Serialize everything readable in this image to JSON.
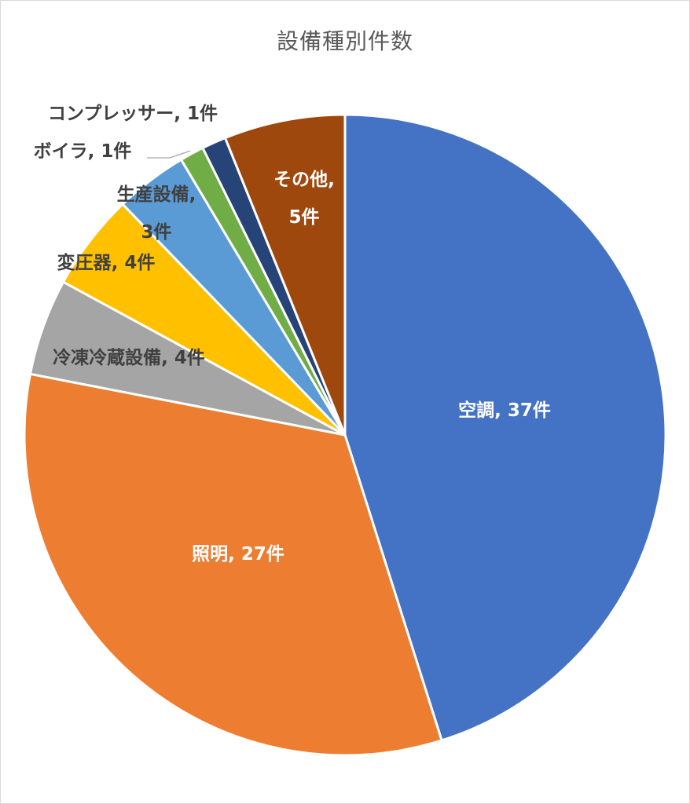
{
  "chart_data": {
    "type": "pie",
    "title": "設備種別件数",
    "slices": [
      {
        "category": "空調",
        "value": 37,
        "label_lines": [
          "空調, 37件"
        ],
        "color": "#4472C4",
        "label_color": "#ffffff"
      },
      {
        "category": "照明",
        "value": 27,
        "label_lines": [
          "照明, 27件"
        ],
        "color": "#ED7D31",
        "label_color": "#ffffff"
      },
      {
        "category": "冷凍冷蔵設備",
        "value": 4,
        "label_lines": [
          "冷凍冷蔵設備, 4件"
        ],
        "color": "#A5A5A5",
        "label_color": "#404040"
      },
      {
        "category": "変圧器",
        "value": 4,
        "label_lines": [
          "変圧器, 4件"
        ],
        "color": "#FFC000",
        "label_color": "#404040"
      },
      {
        "category": "生産設備",
        "value": 3,
        "label_lines": [
          "生産設備,",
          "3件"
        ],
        "color": "#5B9BD5",
        "label_color": "#404040"
      },
      {
        "category": "ボイラ",
        "value": 1,
        "label_lines": [
          "ボイラ, 1件"
        ],
        "color": "#70AD47",
        "label_color": "#404040"
      },
      {
        "category": "コンプレッサー",
        "value": 1,
        "label_lines": [
          "コンプレッサー, 1件"
        ],
        "color": "#264478",
        "label_color": "#404040"
      },
      {
        "category": "その他",
        "value": 5,
        "label_lines": [
          "その他,",
          "5件"
        ],
        "color": "#9E480E",
        "label_color": "#ffffff"
      }
    ]
  }
}
